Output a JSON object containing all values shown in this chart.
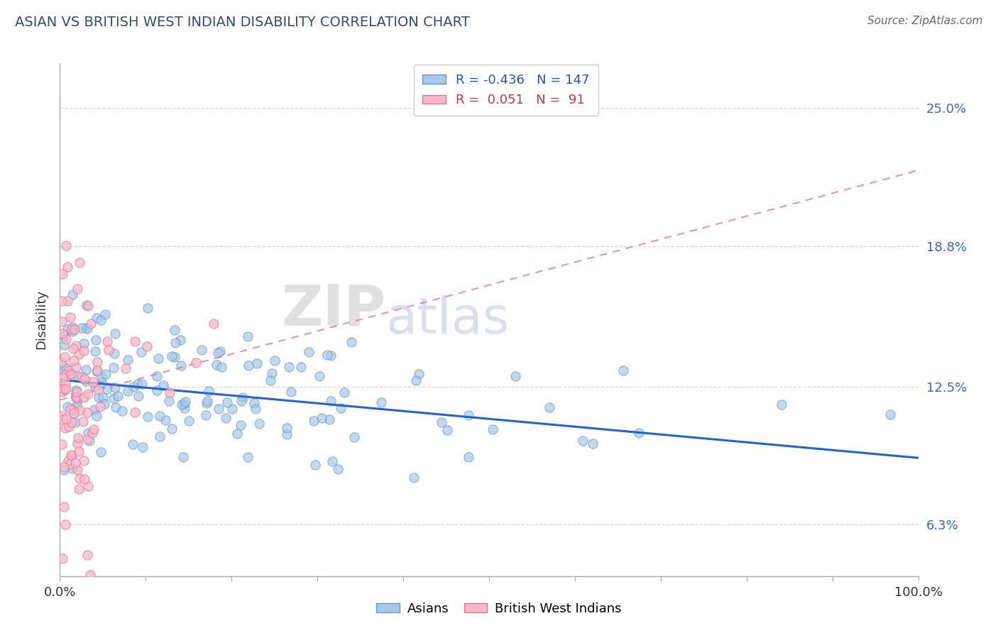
{
  "title": "ASIAN VS BRITISH WEST INDIAN DISABILITY CORRELATION CHART",
  "source": "Source: ZipAtlas.com",
  "ylabel": "Disability",
  "xlim": [
    0.0,
    1.0
  ],
  "ylim": [
    0.04,
    0.27
  ],
  "yticks": [
    0.063,
    0.125,
    0.188,
    0.25
  ],
  "ytick_labels": [
    "6.3%",
    "12.5%",
    "18.8%",
    "25.0%"
  ],
  "asian_color": "#a8c8e8",
  "asian_edge_color": "#6699cc",
  "bwi_color": "#f8b8c8",
  "bwi_edge_color": "#dd7799",
  "asian_line_color": "#2266cc",
  "bwi_line_color": "#dd6688",
  "asian_R": -0.436,
  "asian_N": 147,
  "bwi_R": 0.051,
  "bwi_N": 91,
  "watermark_zip": "ZIP",
  "watermark_atlas": "atlas",
  "background_color": "#ffffff",
  "grid_color": "#cccccc",
  "title_color": "#2f4f6f",
  "source_color": "#666666",
  "asian_line_start_y": 0.128,
  "asian_line_end_y": 0.093,
  "bwi_line_start_y": 0.119,
  "bwi_line_end_y": 0.222
}
